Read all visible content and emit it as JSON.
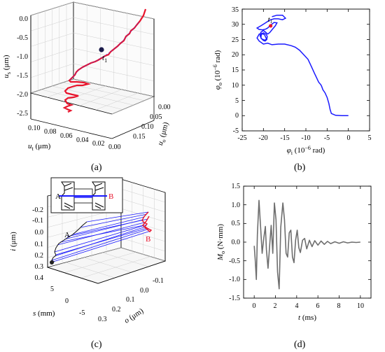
{
  "panels": {
    "a": {
      "label": "(a)"
    },
    "b": {
      "label": "(b)"
    },
    "c": {
      "label": "(c)"
    },
    "d": {
      "label": "(d)"
    }
  },
  "colors": {
    "red": "#e8142c",
    "blue": "#1a1aff",
    "purple": "#7a2aa8",
    "gray": "#6e6e6e",
    "grid": "#c8c8c8",
    "dark": "#1a1a4a"
  },
  "chart_data": [
    {
      "panel": "a",
      "type": "line",
      "view": "3d",
      "axes": {
        "z": {
          "label_main": "u",
          "label_sub": "s",
          "unit": " (μm)",
          "ticks": [
            "0.0",
            "-0.5",
            "-1.0",
            "-1.5",
            "-2.0",
            "-2.5"
          ]
        },
        "x": {
          "label_main": "u",
          "label_sub": "t",
          "unit": " (μm)",
          "ticks": [
            "0.10",
            "0.08",
            "0.06",
            "0.04",
            "0.02",
            "0.00"
          ]
        },
        "y": {
          "label_main": "u",
          "label_sub": "o",
          "unit": " (μm)",
          "ticks": [
            "0.00",
            "0.05",
            "0.10",
            "0.15"
          ]
        }
      },
      "annotation": {
        "main": "t",
        "sub": "1"
      }
    },
    {
      "panel": "b",
      "type": "line",
      "xlabel": {
        "main": "φ",
        "sub": "i",
        "unit": " (10",
        "exp": "−6",
        "tail": " rad)"
      },
      "ylabel": {
        "main": "φ",
        "sub": "o",
        "unit": " (10",
        "exp": "−6",
        "tail": " rad)"
      },
      "xlim": [
        -25,
        5
      ],
      "ylim": [
        -5,
        35
      ],
      "xticks": [
        "-25",
        "-20",
        "-15",
        "-10",
        "-5",
        "0",
        "5"
      ],
      "yticks": [
        "-5",
        "0",
        "5",
        "10",
        "15",
        "20",
        "25",
        "30",
        "35"
      ],
      "annotation": {
        "main": "t",
        "sub": "1"
      },
      "series": [
        {
          "x": [
            0,
            -1.5,
            -3,
            -4,
            -4.3,
            -4.6,
            -5,
            -5.5,
            -6,
            -6.3,
            -6.5,
            -7,
            -7.5,
            -8,
            -8.5,
            -9,
            -9.5,
            -10.5,
            -11.5,
            -12.5,
            -13.5,
            -15,
            -16.5,
            -18,
            -19,
            -20,
            -21,
            -21.5,
            -21,
            -20.3,
            -19.7,
            -19.5,
            -19.2,
            -19.6,
            -20,
            -20.6,
            -20.5,
            -20,
            -19.4,
            -19.1,
            -19.2,
            -19.7,
            -20.4,
            -20.8,
            -20.6,
            -20,
            -19.4,
            -19,
            -18.5,
            -18,
            -17.2,
            -16.8,
            -17.5,
            -18.4,
            -19,
            -19.5,
            -20.2,
            -21,
            -21.5,
            -20.5,
            -19.5,
            -18.5,
            -17.5,
            -16.5,
            -15.5,
            -14.8,
            -15.5,
            -16.8,
            -18
          ],
          "y": [
            0,
            0,
            0.1,
            0.7,
            2,
            4,
            6,
            7.5,
            8.5,
            9.7,
            10.2,
            11,
            12.5,
            14,
            15.5,
            17,
            18.5,
            20,
            21.5,
            22.5,
            23,
            23.5,
            23.5,
            23.3,
            23.8,
            23.5,
            24.5,
            25.5,
            26.8,
            27,
            26.5,
            25.8,
            25,
            24.5,
            24.7,
            25.5,
            26.6,
            27.2,
            26.8,
            26,
            25.2,
            24.8,
            25.2,
            26.2,
            27.4,
            28,
            27.3,
            26.8,
            27.3,
            28.2,
            29.5,
            30.5,
            30.6,
            29.6,
            28.8,
            28.4,
            28.2,
            28.3,
            28.8,
            29.6,
            30.5,
            31.4,
            31.8,
            31.8,
            31.5,
            32,
            33,
            33,
            32.5
          ]
        }
      ],
      "marker": {
        "x": -18.3,
        "y": 29.5
      }
    },
    {
      "panel": "c",
      "type": "line",
      "view": "3d",
      "axes": {
        "z": {
          "label_main": "i",
          "unit": " (μm)",
          "ticks": [
            "-0.2",
            "-0.1",
            "0.0",
            "0.1",
            "0.2",
            "0.3",
            "0.4"
          ]
        },
        "x": {
          "label_main": "s",
          "unit": " (mm)",
          "ticks": [
            "5",
            "0",
            "-5"
          ]
        },
        "y": {
          "label_main": "o",
          "unit": " (μm)",
          "ticks": [
            "-0.1",
            "0.0",
            "0.1",
            "0.2",
            "0.3"
          ]
        }
      },
      "inset": {
        "label_a": "A",
        "label_b": "B"
      },
      "labels": {
        "a": "A",
        "b": "B"
      }
    },
    {
      "panel": "d",
      "type": "line",
      "xlabel": {
        "main": "t",
        "unit": " (ms)"
      },
      "ylabel": {
        "main": "M",
        "sub": "o",
        "unit": " (N·mm)"
      },
      "xlim": [
        -1,
        11
      ],
      "ylim": [
        -1.5,
        1.5
      ],
      "xticks": [
        "0",
        "2",
        "4",
        "6",
        "8",
        "10"
      ],
      "yticks": [
        "-1.5",
        "-1.0",
        "-0.5",
        "0.0",
        "0.5",
        "1.0",
        "1.5"
      ],
      "series": [
        {
          "x": [
            0,
            0.1,
            0.2,
            0.3,
            0.45,
            0.6,
            0.75,
            0.9,
            1.05,
            1.15,
            1.3,
            1.45,
            1.6,
            1.75,
            1.9,
            2.05,
            2.2,
            2.35,
            2.5,
            2.7,
            2.85,
            3.0,
            3.15,
            3.3,
            3.45,
            3.6,
            3.75,
            3.9,
            4.05,
            4.2,
            4.35,
            4.55,
            4.75,
            4.95,
            5.2,
            5.45,
            5.7,
            6.0,
            6.3,
            6.6,
            6.9,
            7.2,
            7.6,
            8.0,
            8.4,
            8.8,
            9.2,
            9.6,
            10.0
          ],
          "y": [
            -0.1,
            -0.5,
            -1.0,
            0.2,
            1.12,
            0.4,
            -0.3,
            0.1,
            0.42,
            -0.2,
            -0.7,
            -0.1,
            0.45,
            -0.3,
            1.05,
            0.6,
            -0.8,
            -1.25,
            0.4,
            1.05,
            0.6,
            -0.3,
            -0.4,
            0.25,
            0.32,
            -0.4,
            -0.55,
            0.05,
            0.32,
            -0.15,
            -0.28,
            0.05,
            0.1,
            -0.18,
            0.05,
            -0.12,
            0.04,
            -0.08,
            0.03,
            -0.06,
            0.02,
            -0.04,
            0.01,
            -0.03,
            0.01,
            -0.02,
            0.0,
            -0.01,
            0.0
          ]
        }
      ]
    }
  ]
}
